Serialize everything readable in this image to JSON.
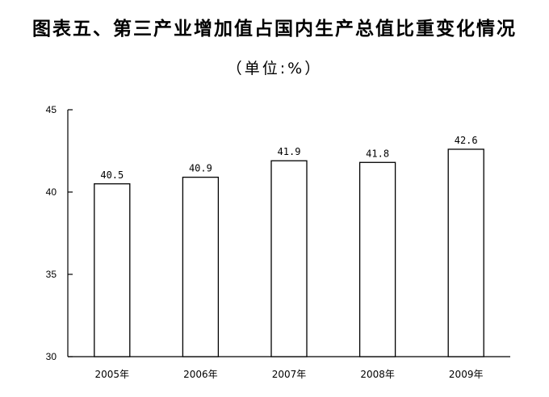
{
  "chart_data": {
    "type": "bar",
    "title": "图表五、第三产业增加值占国内生产总值比重变化情况",
    "subtitle": "（单位:%）",
    "categories": [
      "2005年",
      "2006年",
      "2007年",
      "2008年",
      "2009年"
    ],
    "values": [
      40.5,
      40.9,
      41.9,
      41.8,
      42.6
    ],
    "value_labels": [
      "40.5",
      "40.9",
      "41.9",
      "41.8",
      "42.6"
    ],
    "ylim": [
      30,
      45
    ],
    "yticks": [
      30,
      35,
      40,
      45
    ],
    "ytick_labels": [
      "30",
      "35",
      "40",
      "45"
    ],
    "xlabel": "",
    "ylabel": "",
    "grid": false,
    "legend": "none",
    "bar_fill": "#ffffff",
    "bar_stroke": "#000000"
  }
}
